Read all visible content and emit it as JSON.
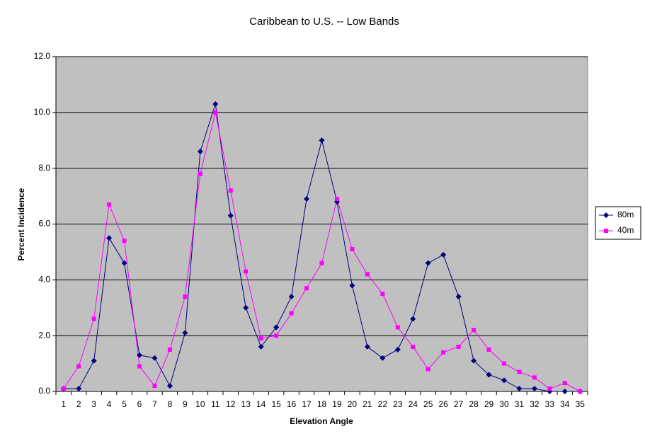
{
  "chart_data": {
    "type": "line",
    "title": "Caribbean to U.S. -- Low Bands",
    "x_label": "Elevation Angle",
    "y_label": "Percent Incidence",
    "categories": [
      "1",
      "2",
      "3",
      "4",
      "5",
      "6",
      "7",
      "8",
      "9",
      "10",
      "11",
      "12",
      "13",
      "14",
      "15",
      "16",
      "17",
      "18",
      "19",
      "20",
      "21",
      "22",
      "23",
      "24",
      "25",
      "26",
      "27",
      "28",
      "29",
      "30",
      "31",
      "32",
      "33",
      "34",
      "35"
    ],
    "series": [
      {
        "name": "80m",
        "color": "#000080",
        "marker": "diamond",
        "values": [
          0.1,
          0.1,
          1.1,
          5.5,
          4.6,
          1.3,
          1.2,
          0.2,
          2.1,
          8.6,
          10.3,
          6.3,
          3.0,
          1.6,
          2.3,
          3.4,
          6.9,
          9.0,
          6.8,
          3.8,
          1.6,
          1.2,
          1.5,
          2.6,
          4.6,
          4.9,
          3.4,
          1.1,
          0.6,
          0.4,
          0.1,
          0.1,
          0.0,
          0.0,
          0.0
        ]
      },
      {
        "name": "40m",
        "color": "#ff00ff",
        "marker": "square",
        "values": [
          0.1,
          0.9,
          2.6,
          6.7,
          5.4,
          0.9,
          0.2,
          1.5,
          3.4,
          7.8,
          10.0,
          7.2,
          4.3,
          1.9,
          2.0,
          2.8,
          3.7,
          4.6,
          6.9,
          5.1,
          4.2,
          3.5,
          2.3,
          1.6,
          0.8,
          1.4,
          1.6,
          2.2,
          1.5,
          1.0,
          0.7,
          0.5,
          0.1,
          0.3,
          0.0
        ]
      }
    ],
    "ylim": [
      0,
      12
    ],
    "yticks": [
      {
        "value": 0,
        "label": "0.0"
      },
      {
        "value": 2,
        "label": "2.0"
      },
      {
        "value": 4,
        "label": "4.0"
      },
      {
        "value": 6,
        "label": "6.0"
      },
      {
        "value": 8,
        "label": "8.0"
      },
      {
        "value": 10,
        "label": "10.0"
      },
      {
        "value": 12,
        "label": "12.0"
      }
    ],
    "grid": true,
    "legend": "right",
    "plot_background": "#c0c0c0"
  }
}
